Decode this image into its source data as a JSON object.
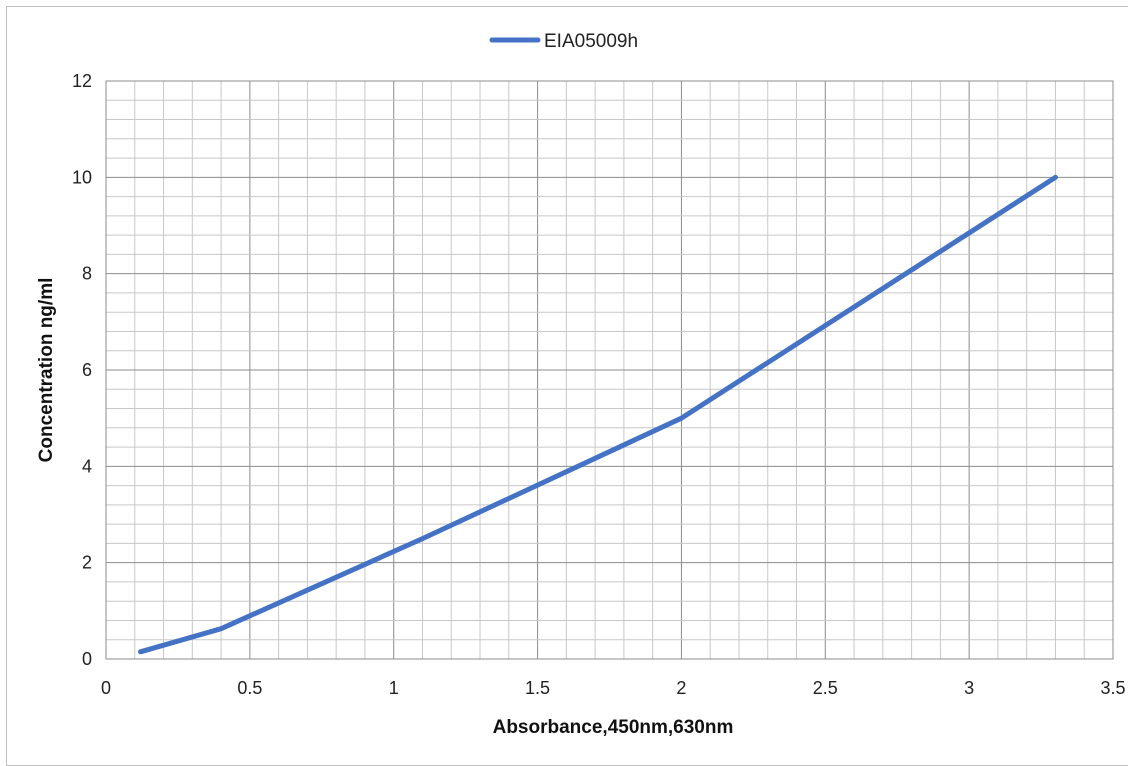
{
  "chart_data": {
    "type": "line",
    "title": "",
    "xlabel": "Absorbance,450nm,630nm",
    "ylabel": "Concentration ng/ml",
    "xlim": [
      0,
      3.5
    ],
    "ylim": [
      0,
      12
    ],
    "x_ticks": [
      0,
      0.5,
      1,
      1.5,
      2,
      2.5,
      3,
      3.5
    ],
    "x_tick_labels": [
      "0",
      "0.5",
      "1",
      "1.5",
      "2",
      "2.5",
      "3",
      "3.5"
    ],
    "y_ticks": [
      0,
      2,
      4,
      6,
      8,
      10,
      12
    ],
    "y_tick_labels": [
      "0",
      "2",
      "4",
      "6",
      "8",
      "10",
      "12"
    ],
    "grid": true,
    "minor_grid": true,
    "legend_position": "top-center",
    "series": [
      {
        "name": "EIA05009h",
        "color": "#4472c4",
        "x": [
          0.12,
          0.4,
          1.1,
          2.0,
          3.3
        ],
        "y": [
          0.15,
          0.63,
          2.5,
          5.0,
          10.0
        ]
      }
    ]
  }
}
